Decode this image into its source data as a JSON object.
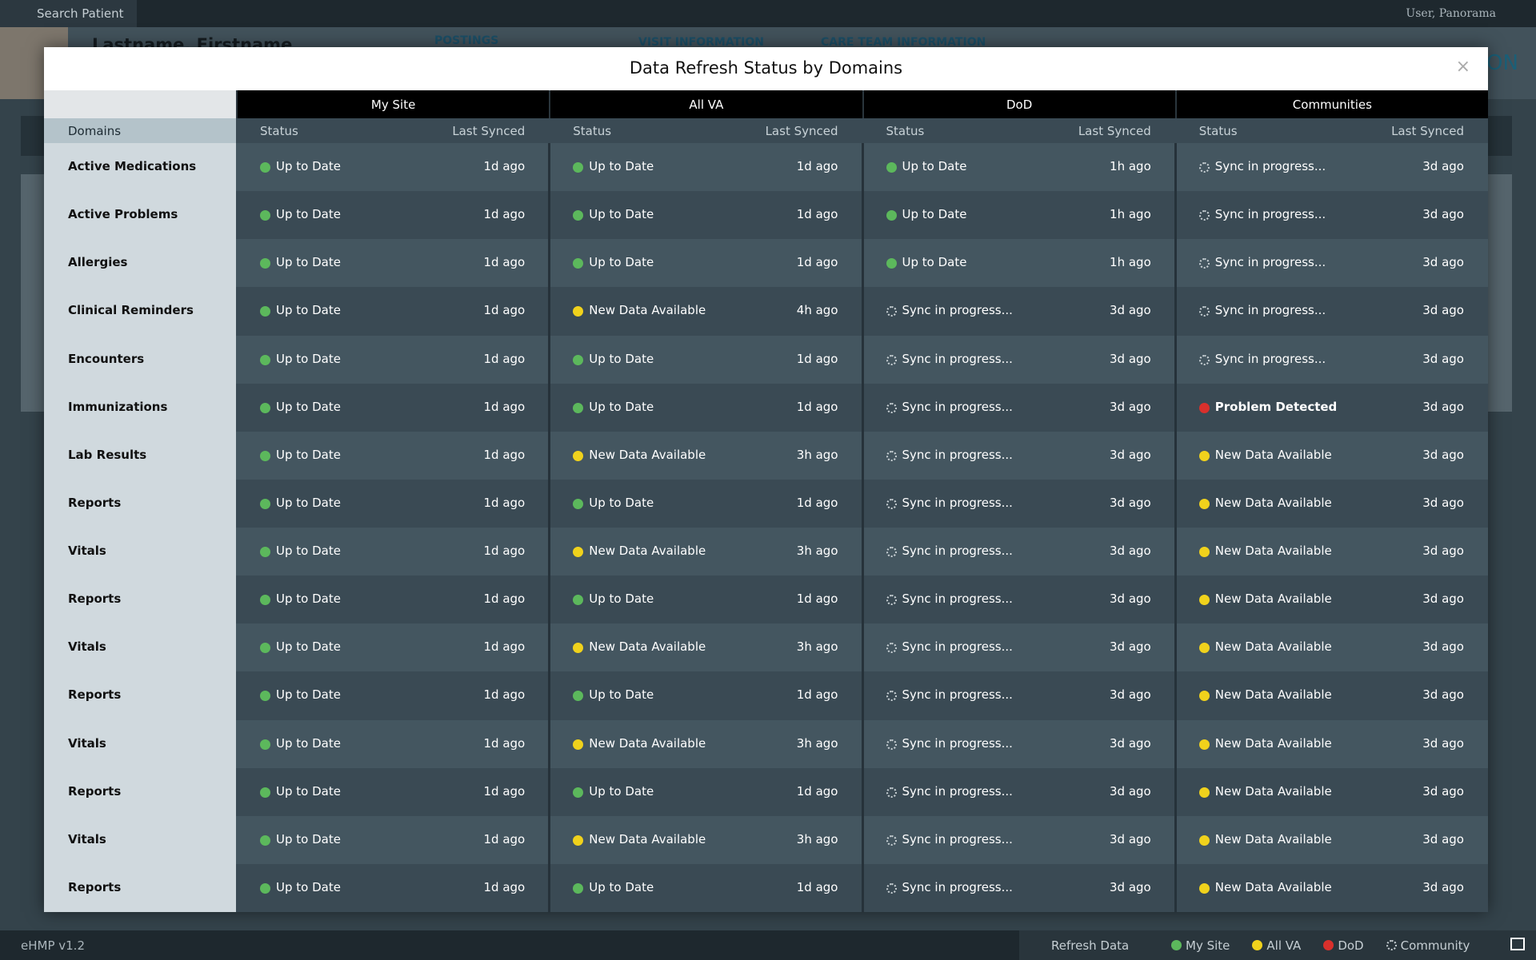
{
  "top_bar": {
    "search": "Search Patient",
    "user": "User, Panorama"
  },
  "patient": {
    "name": "Lastname, Firstname",
    "tabs": [
      "POSTINGS",
      "VISIT INFORMATION",
      "CARE TEAM INFORMATION"
    ],
    "badge": "ON"
  },
  "modal": {
    "title": "Data Refresh Status by Domains",
    "domains_label": "Domains",
    "status_label": "Status",
    "synced_label": "Last Synced",
    "sources": [
      "My Site",
      "All VA",
      "DoD",
      "Communities"
    ],
    "rows": [
      {
        "domain": "Active Medications",
        "cells": [
          [
            "Up to Date",
            "1d ago",
            "check"
          ],
          [
            "Up to Date",
            "1d ago",
            "check"
          ],
          [
            "Up to Date",
            "1h ago",
            "check"
          ],
          [
            "Sync in progress...",
            "3d ago",
            "sync"
          ]
        ]
      },
      {
        "domain": "Active Problems",
        "cells": [
          [
            "Up to Date",
            "1d ago",
            "check"
          ],
          [
            "Up to Date",
            "1d ago",
            "check"
          ],
          [
            "Up to Date",
            "1h ago",
            "check"
          ],
          [
            "Sync in progress...",
            "3d ago",
            "sync"
          ]
        ]
      },
      {
        "domain": "Allergies",
        "cells": [
          [
            "Up to Date",
            "1d ago",
            "check"
          ],
          [
            "Up to Date",
            "1d ago",
            "check"
          ],
          [
            "Up to Date",
            "1h ago",
            "check"
          ],
          [
            "Sync in progress...",
            "3d ago",
            "sync"
          ]
        ]
      },
      {
        "domain": "Clinical Reminders",
        "cells": [
          [
            "Up to Date",
            "1d ago",
            "check"
          ],
          [
            "New Data Available",
            "4h ago",
            "warn"
          ],
          [
            "Sync in progress...",
            "3d ago",
            "sync"
          ],
          [
            "Sync in progress...",
            "3d ago",
            "sync"
          ]
        ]
      },
      {
        "domain": "Encounters",
        "cells": [
          [
            "Up to Date",
            "1d ago",
            "check"
          ],
          [
            "Up to Date",
            "1d ago",
            "check"
          ],
          [
            "Sync in progress...",
            "3d ago",
            "sync"
          ],
          [
            "Sync in progress...",
            "3d ago",
            "sync"
          ]
        ]
      },
      {
        "domain": "Immunizations",
        "cells": [
          [
            "Up to Date",
            "1d ago",
            "check"
          ],
          [
            "Up to Date",
            "1d ago",
            "check"
          ],
          [
            "Sync in progress...",
            "3d ago",
            "sync"
          ],
          [
            "Problem Detected",
            "3d ago",
            "error"
          ]
        ]
      },
      {
        "domain": "Lab Results",
        "cells": [
          [
            "Up to Date",
            "1d ago",
            "check"
          ],
          [
            "New Data Available",
            "3h ago",
            "warn"
          ],
          [
            "Sync in progress...",
            "3d ago",
            "sync"
          ],
          [
            "New Data Available",
            "3d ago",
            "warn"
          ]
        ]
      },
      {
        "domain": "Reports",
        "cells": [
          [
            "Up to Date",
            "1d ago",
            "check"
          ],
          [
            "Up to Date",
            "1d ago",
            "check"
          ],
          [
            "Sync in progress...",
            "3d ago",
            "sync"
          ],
          [
            "New Data Available",
            "3d ago",
            "warn"
          ]
        ]
      },
      {
        "domain": "Vitals",
        "cells": [
          [
            "Up to Date",
            "1d ago",
            "check"
          ],
          [
            "New Data Available",
            "3h ago",
            "warn"
          ],
          [
            "Sync in progress...",
            "3d ago",
            "sync"
          ],
          [
            "New Data Available",
            "3d ago",
            "warn"
          ]
        ]
      },
      {
        "domain": "Reports",
        "cells": [
          [
            "Up to Date",
            "1d ago",
            "check"
          ],
          [
            "Up to Date",
            "1d ago",
            "check"
          ],
          [
            "Sync in progress...",
            "3d ago",
            "sync"
          ],
          [
            "New Data Available",
            "3d ago",
            "warn"
          ]
        ]
      },
      {
        "domain": "Vitals",
        "cells": [
          [
            "Up to Date",
            "1d ago",
            "check"
          ],
          [
            "New Data Available",
            "3h ago",
            "warn"
          ],
          [
            "Sync in progress...",
            "3d ago",
            "sync"
          ],
          [
            "New Data Available",
            "3d ago",
            "warn"
          ]
        ]
      },
      {
        "domain": "Reports",
        "cells": [
          [
            "Up to Date",
            "1d ago",
            "check"
          ],
          [
            "Up to Date",
            "1d ago",
            "check"
          ],
          [
            "Sync in progress...",
            "3d ago",
            "sync"
          ],
          [
            "New Data Available",
            "3d ago",
            "warn"
          ]
        ]
      },
      {
        "domain": "Vitals",
        "cells": [
          [
            "Up to Date",
            "1d ago",
            "check"
          ],
          [
            "New Data Available",
            "3h ago",
            "warn"
          ],
          [
            "Sync in progress...",
            "3d ago",
            "sync"
          ],
          [
            "New Data Available",
            "3d ago",
            "warn"
          ]
        ]
      },
      {
        "domain": "Reports",
        "cells": [
          [
            "Up to Date",
            "1d ago",
            "check"
          ],
          [
            "Up to Date",
            "1d ago",
            "check"
          ],
          [
            "Sync in progress...",
            "3d ago",
            "sync"
          ],
          [
            "New Data Available",
            "3d ago",
            "warn"
          ]
        ]
      },
      {
        "domain": "Vitals",
        "cells": [
          [
            "Up to Date",
            "1d ago",
            "check"
          ],
          [
            "New Data Available",
            "3h ago",
            "warn"
          ],
          [
            "Sync in progress...",
            "3d ago",
            "sync"
          ],
          [
            "New Data Available",
            "3d ago",
            "warn"
          ]
        ]
      },
      {
        "domain": "Reports",
        "cells": [
          [
            "Up to Date",
            "1d ago",
            "check"
          ],
          [
            "Up to Date",
            "1d ago",
            "check"
          ],
          [
            "Sync in progress...",
            "3d ago",
            "sync"
          ],
          [
            "New Data Available",
            "3d ago",
            "warn"
          ]
        ]
      }
    ]
  },
  "footer": {
    "version": "eHMP v1.2",
    "refresh": "Refresh Data",
    "legend": [
      [
        "My Site",
        "check"
      ],
      [
        "All VA",
        "warn"
      ],
      [
        "DoD",
        "error"
      ],
      [
        "Community",
        "sync"
      ]
    ]
  }
}
